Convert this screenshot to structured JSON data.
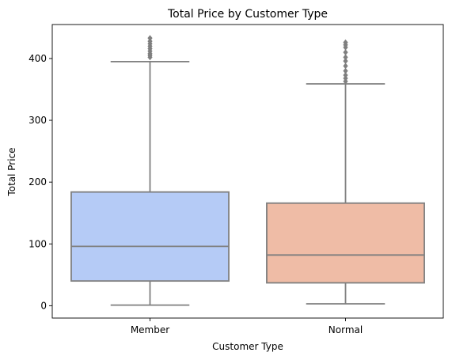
{
  "chart_data": {
    "type": "box",
    "title": "Total Price by Customer Type",
    "xlabel": "Customer Type",
    "ylabel": "Total Price",
    "ylim": [
      -20,
      455
    ],
    "yticks": [
      0,
      100,
      200,
      300,
      400
    ],
    "grid": false,
    "categories": [
      "Member",
      "Normal"
    ],
    "boxes": [
      {
        "name": "Member",
        "color": "#b5cbf6",
        "whisker_low": 1,
        "q1": 40,
        "median": 96,
        "q3": 184,
        "whisker_high": 395,
        "outliers": [
          402,
          405,
          408,
          412,
          416,
          420,
          424,
          428,
          433
        ]
      },
      {
        "name": "Normal",
        "color": "#efbca6",
        "whisker_low": 3,
        "q1": 37,
        "median": 82,
        "q3": 166,
        "whisker_high": 359,
        "outliers": [
          363,
          368,
          373,
          380,
          388,
          396,
          402,
          410,
          418,
          422,
          426
        ]
      }
    ]
  }
}
